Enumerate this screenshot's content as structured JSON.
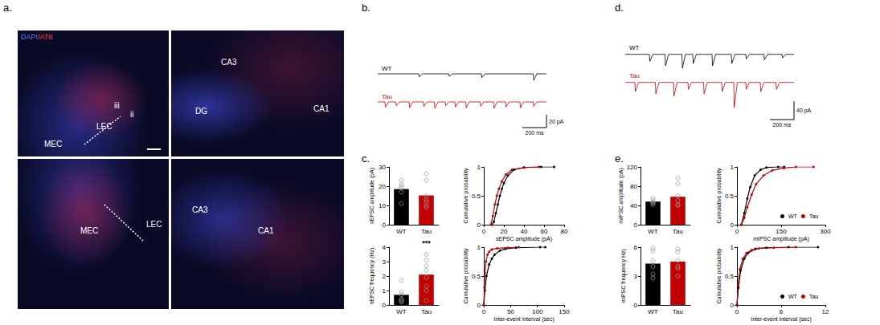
{
  "panel_labels": [
    "a.",
    "b.",
    "c.",
    "d.",
    "e."
  ],
  "images": {
    "stain": [
      "DAPI",
      "/AT8"
    ],
    "panels": [
      [
        "iii",
        "ii",
        "LEC",
        "MEC"
      ],
      [
        "DG",
        "CA3",
        "CA1"
      ],
      [
        "MEC",
        "LEC"
      ],
      [
        "CA3",
        "CA1"
      ]
    ]
  },
  "chart_data": [
    {
      "type": "line",
      "tick_labels": false,
      "xlim": [
        0,
        1400
      ],
      "ylim": [
        -25,
        5
      ],
      "series": [
        {
          "name": "WT",
          "color": "#000000",
          "x": [
            0,
            340,
            344,
            370,
            590,
            594,
            620,
            860,
            864,
            890,
            1290,
            1294,
            1320,
            1400
          ],
          "values": [
            0,
            0,
            -5,
            0,
            0,
            -4,
            0,
            0,
            -6,
            0,
            0,
            -10,
            0,
            0
          ]
        },
        {
          "name": "Tau",
          "color": "#c00000",
          "x": [
            0,
            60,
            64,
            90,
            150,
            154,
            180,
            260,
            264,
            290,
            380,
            384,
            410,
            470,
            474,
            500,
            560,
            564,
            590,
            640,
            644,
            670,
            730,
            734,
            760,
            850,
            854,
            880,
            960,
            964,
            990,
            1060,
            1064,
            1090,
            1180,
            1184,
            1210,
            1290,
            1294,
            1320,
            1400
          ],
          "values": [
            0,
            0,
            -8,
            0,
            0,
            -6,
            0,
            0,
            -9,
            0,
            0,
            -7,
            0,
            0,
            -10,
            0,
            0,
            -6,
            0,
            0,
            -8,
            0,
            0,
            -9,
            0,
            0,
            -7,
            0,
            0,
            -10,
            0,
            0,
            -8,
            0,
            0,
            -9,
            0,
            0,
            -7,
            0,
            0
          ]
        }
      ],
      "scale_bar": {
        "x": 200,
        "y": 20,
        "x_label": "200 ms",
        "y_label": "20 pA"
      }
    },
    {
      "type": "bar",
      "categories": [
        "WT",
        "Tau"
      ],
      "values": [
        18.5,
        15.2
      ],
      "colors": [
        "#000000",
        "#c00000"
      ],
      "points": [
        [
          23,
          21,
          19,
          17,
          11,
          20
        ],
        [
          26.5,
          23,
          15,
          13,
          12,
          10,
          9
        ]
      ],
      "ylabel": "sEPSC amplitude (pA)",
      "ylim": [
        0,
        30
      ],
      "yticks": [
        0,
        10,
        20,
        30
      ]
    },
    {
      "type": "line",
      "marker": "circle",
      "xlabel": "sEPSC amplitude (pA)",
      "ylabel": "Cumulative probability",
      "xlim": [
        0,
        80
      ],
      "xticks": [
        0,
        20,
        40,
        60,
        80
      ],
      "ylim": [
        0,
        1
      ],
      "yticks": [
        0,
        0.5,
        1
      ],
      "series": [
        {
          "name": "WT",
          "color": "#000000",
          "x": [
            8,
            10,
            12,
            14,
            16,
            18,
            20,
            24,
            30,
            40,
            57,
            70
          ],
          "values": [
            0,
            0.05,
            0.2,
            0.35,
            0.5,
            0.62,
            0.72,
            0.85,
            0.95,
            0.99,
            1,
            1
          ]
        },
        {
          "name": "Tau",
          "color": "#c00000",
          "x": [
            7,
            9,
            11,
            13,
            15,
            18,
            22,
            28,
            40,
            55
          ],
          "values": [
            0,
            0.15,
            0.35,
            0.5,
            0.62,
            0.75,
            0.87,
            0.95,
            0.99,
            1
          ]
        }
      ]
    },
    {
      "type": "bar",
      "categories": [
        "WT",
        "Tau"
      ],
      "values": [
        0.7,
        2.1
      ],
      "colors": [
        "#000000",
        "#c00000"
      ],
      "points": [
        [
          1.7,
          0.9,
          0.7,
          0.4,
          0.3,
          0.2
        ],
        [
          3.5,
          3.1,
          2.7,
          2.4,
          1.9,
          1.3,
          1.0,
          0.3
        ]
      ],
      "ylabel": "sEPSC frequency (Hz)",
      "ylim": [
        0,
        4
      ],
      "yticks": [
        0,
        1,
        2,
        3,
        4
      ],
      "annotations": [
        {
          "text": "***",
          "category": "Tau"
        }
      ]
    },
    {
      "type": "line",
      "marker": "circle",
      "xlabel": "Inter-event interval (sec)",
      "ylabel": "Cumulative probability",
      "xlim": [
        0,
        150
      ],
      "xticks": [
        0,
        50,
        100,
        150
      ],
      "ylim": [
        0,
        1
      ],
      "yticks": [
        0,
        0.5,
        1
      ],
      "series": [
        {
          "name": "WT",
          "color": "#000000",
          "x": [
            0,
            2,
            5,
            10,
            15,
            20,
            30,
            40,
            60,
            105,
            115
          ],
          "values": [
            0,
            0.25,
            0.5,
            0.7,
            0.8,
            0.87,
            0.94,
            0.97,
            0.99,
            1,
            1
          ]
        },
        {
          "name": "Tau",
          "color": "#c00000",
          "x": [
            0,
            1,
            2,
            4,
            7,
            10,
            15,
            25,
            45,
            65
          ],
          "values": [
            0,
            0.3,
            0.55,
            0.75,
            0.87,
            0.92,
            0.96,
            0.98,
            0.99,
            1
          ]
        }
      ]
    },
    {
      "type": "line",
      "tick_labels": false,
      "xlim": [
        0,
        1400
      ],
      "ylim": [
        -60,
        10
      ],
      "series": [
        {
          "name": "WT",
          "color": "#000000",
          "x": [
            0,
            200,
            204,
            230,
            330,
            334,
            360,
            470,
            474,
            500,
            560,
            564,
            590,
            720,
            724,
            750,
            880,
            884,
            910,
            1000,
            1004,
            1030,
            1150,
            1154,
            1180,
            1300,
            1304,
            1330,
            1400
          ],
          "values": [
            0,
            0,
            -15,
            0,
            0,
            -25,
            0,
            0,
            -30,
            0,
            0,
            -20,
            0,
            0,
            -25,
            0,
            0,
            -20,
            0,
            0,
            -10,
            0,
            0,
            -12,
            0,
            0,
            -8,
            0,
            0
          ]
        },
        {
          "name": "Tau",
          "color": "#c00000",
          "x": [
            0,
            80,
            84,
            110,
            250,
            254,
            280,
            400,
            404,
            430,
            520,
            524,
            550,
            650,
            654,
            680,
            800,
            804,
            830,
            900,
            904,
            930,
            1000,
            1004,
            1030,
            1120,
            1124,
            1150,
            1250,
            1254,
            1280,
            1400
          ],
          "values": [
            0,
            0,
            -20,
            0,
            0,
            -25,
            0,
            0,
            -30,
            0,
            0,
            -15,
            0,
            0,
            -25,
            0,
            0,
            -20,
            0,
            0,
            -55,
            0,
            0,
            -15,
            0,
            0,
            -20,
            0,
            0,
            -15,
            0,
            0
          ]
        }
      ],
      "scale_bar": {
        "x": 200,
        "y": 40,
        "x_label": "200 ms",
        "y_label": "40 pA"
      }
    },
    {
      "type": "bar",
      "categories": [
        "WT",
        "Tau"
      ],
      "values": [
        48,
        58
      ],
      "colors": [
        "#000000",
        "#c00000"
      ],
      "points": [
        [
          55,
          50,
          47,
          45,
          42
        ],
        [
          97,
          85,
          60,
          50,
          42,
          40
        ]
      ],
      "ylabel": "mIPSC amplitude (pA)",
      "ylim": [
        0,
        120
      ],
      "yticks": [
        0,
        40,
        80,
        120
      ]
    },
    {
      "type": "line",
      "marker": "circle",
      "legend": "lower right",
      "xlabel": "mIPSC amplitude (pA)",
      "ylabel": "Cumulative probability",
      "xlim": [
        0,
        300
      ],
      "xticks": [
        0,
        150,
        300
      ],
      "ylim": [
        0,
        1
      ],
      "yticks": [
        0,
        0.5,
        1
      ],
      "series": [
        {
          "name": "WT",
          "color": "#000000",
          "x": [
            15,
            25,
            35,
            45,
            60,
            80,
            100,
            140,
            160
          ],
          "values": [
            0,
            0.2,
            0.45,
            0.65,
            0.85,
            0.95,
            0.99,
            1,
            1
          ]
        },
        {
          "name": "Tau",
          "color": "#c00000",
          "x": [
            15,
            25,
            35,
            50,
            65,
            90,
            120,
            160,
            200,
            260
          ],
          "values": [
            0,
            0.12,
            0.3,
            0.52,
            0.7,
            0.85,
            0.94,
            0.98,
            1,
            1
          ]
        }
      ]
    },
    {
      "type": "bar",
      "categories": [
        "WT",
        "Tau"
      ],
      "values": [
        4.3,
        4.5
      ],
      "colors": [
        "#000000",
        "#c00000"
      ],
      "points": [
        [
          5.9,
          5.6,
          4.6,
          4.0,
          3.2,
          2.8
        ],
        [
          5.8,
          5.5,
          4.6,
          4.0,
          3.8,
          3.0
        ]
      ],
      "ylabel": "mIPSC frequency Hz)",
      "ylim": [
        0,
        6
      ],
      "yticks": [
        0,
        3,
        6
      ]
    },
    {
      "type": "line",
      "marker": "circle",
      "legend": "lower right",
      "xlabel": "Inter-event interval (sec)",
      "ylabel": "Cumulative probability",
      "xlim": [
        0,
        12
      ],
      "xticks": [
        0,
        6,
        12
      ],
      "ylim": [
        0,
        1
      ],
      "yticks": [
        0,
        0.5,
        1
      ],
      "series": [
        {
          "name": "WT",
          "color": "#000000",
          "x": [
            0,
            0.2,
            0.5,
            1,
            1.5,
            2.5,
            4,
            7,
            11
          ],
          "values": [
            0,
            0.3,
            0.6,
            0.8,
            0.9,
            0.97,
            0.99,
            1,
            1
          ]
        },
        {
          "name": "Tau",
          "color": "#c00000",
          "x": [
            0,
            0.15,
            0.4,
            0.8,
            1.3,
            2,
            3,
            5,
            8
          ],
          "values": [
            0,
            0.35,
            0.62,
            0.8,
            0.9,
            0.95,
            0.98,
            0.99,
            1
          ]
        }
      ]
    }
  ]
}
